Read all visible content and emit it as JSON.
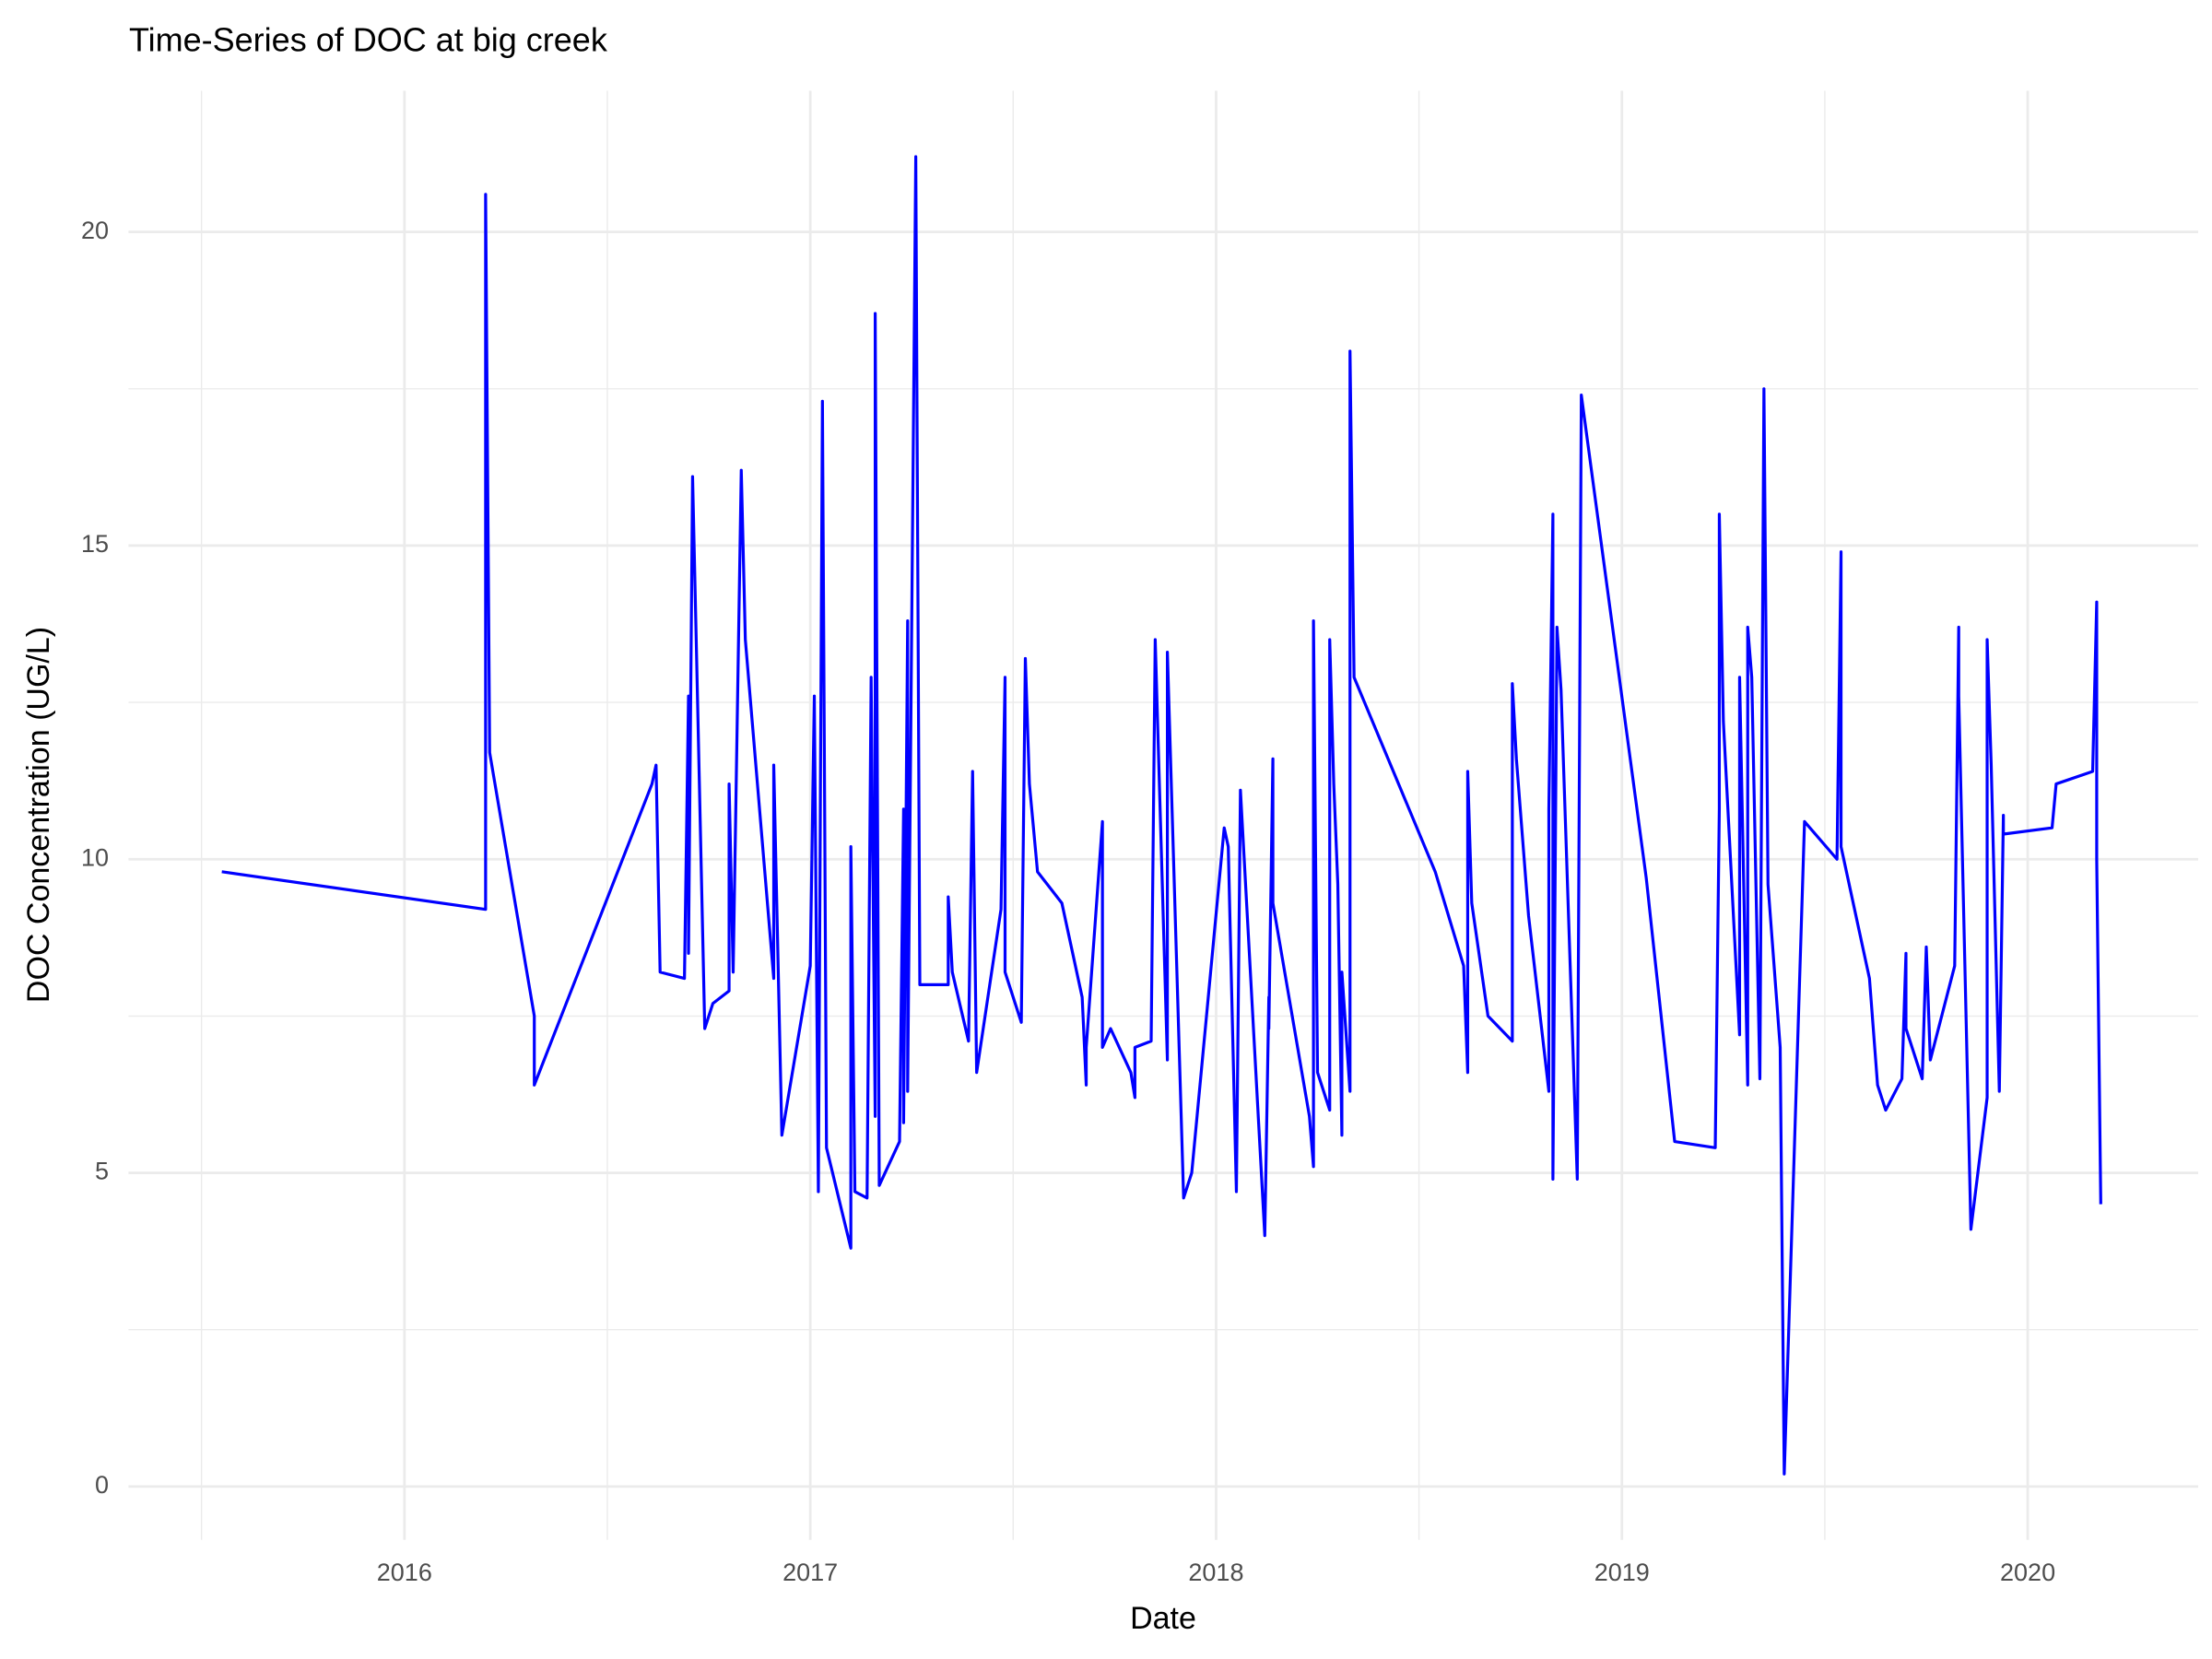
{
  "chart_data": {
    "type": "line",
    "title": "Time-Series of DOC at big creek",
    "x_label": "Date",
    "y_label": "DOC Concentration (UG/L)",
    "color": "#0000ff",
    "grid": true,
    "xlim": [
      2015.32,
      2020.42
    ],
    "xticks": [
      2016,
      2017,
      2018,
      2019,
      2020
    ],
    "ylim": [
      -0.85,
      22.25
    ],
    "yticks": [
      0,
      5,
      10,
      15,
      20
    ],
    "x": [
      2015.55,
      2016.2,
      2016.2,
      2016.21,
      2016.32,
      2016.32,
      2016.61,
      2016.62,
      2016.63,
      2016.69,
      2016.7,
      2016.7,
      2016.71,
      2016.72,
      2016.74,
      2016.76,
      2016.8,
      2016.8,
      2016.81,
      2016.82,
      2016.83,
      2016.84,
      2016.91,
      2016.91,
      2016.93,
      2017.0,
      2017.01,
      2017.02,
      2017.03,
      2017.04,
      2017.1,
      2017.1,
      2017.11,
      2017.14,
      2017.15,
      2017.16,
      2017.16,
      2017.17,
      2017.22,
      2017.23,
      2017.23,
      2017.24,
      2017.24,
      2017.26,
      2017.27,
      2017.34,
      2017.34,
      2017.35,
      2017.39,
      2017.4,
      2017.41,
      2017.47,
      2017.48,
      2017.48,
      2017.52,
      2017.53,
      2017.54,
      2017.56,
      2017.62,
      2017.67,
      2017.68,
      2017.68,
      2017.72,
      2017.72,
      2017.74,
      2017.79,
      2017.8,
      2017.8,
      2017.84,
      2017.85,
      2017.88,
      2017.88,
      2017.92,
      2017.94,
      2018.02,
      2018.03,
      2018.05,
      2018.06,
      2018.12,
      2018.13,
      2018.13,
      2018.14,
      2018.14,
      2018.23,
      2018.24,
      2018.24,
      2018.25,
      2018.28,
      2018.28,
      2018.29,
      2018.3,
      2018.31,
      2018.31,
      2018.33,
      2018.33,
      2018.34,
      2018.54,
      2018.61,
      2018.62,
      2018.62,
      2018.63,
      2018.67,
      2018.73,
      2018.73,
      2018.74,
      2018.77,
      2018.82,
      2018.82,
      2018.83,
      2018.83,
      2018.84,
      2018.85,
      2018.89,
      2018.9,
      2019.06,
      2019.13,
      2019.23,
      2019.24,
      2019.24,
      2019.25,
      2019.29,
      2019.29,
      2019.31,
      2019.31,
      2019.32,
      2019.34,
      2019.35,
      2019.36,
      2019.39,
      2019.4,
      2019.45,
      2019.53,
      2019.54,
      2019.54,
      2019.61,
      2019.63,
      2019.65,
      2019.69,
      2019.7,
      2019.7,
      2019.74,
      2019.75,
      2019.76,
      2019.82,
      2019.83,
      2019.83,
      2019.86,
      2019.9,
      2019.9,
      2019.91,
      2019.93,
      2019.94,
      2019.94,
      2020.06,
      2020.07,
      2020.16,
      2020.17,
      2020.17,
      2020.18
    ],
    "values": [
      9.8,
      9.2,
      20.6,
      11.7,
      7.5,
      6.4,
      11.2,
      11.5,
      8.2,
      8.1,
      12.6,
      8.5,
      16.1,
      13.2,
      7.3,
      7.7,
      7.9,
      11.2,
      8.2,
      12.2,
      16.2,
      13.5,
      8.1,
      11.5,
      5.6,
      8.3,
      12.6,
      4.7,
      17.3,
      5.4,
      3.8,
      10.2,
      4.7,
      4.6,
      12.9,
      5.9,
      18.7,
      4.8,
      5.5,
      10.8,
      5.8,
      13.8,
      6.3,
      21.2,
      8.0,
      8.0,
      9.4,
      8.2,
      7.1,
      11.4,
      6.6,
      9.2,
      12.9,
      8.2,
      7.4,
      13.2,
      11.2,
      9.8,
      9.3,
      7.8,
      6.4,
      7.0,
      10.6,
      7.0,
      7.3,
      6.6,
      6.2,
      7.0,
      7.1,
      13.5,
      6.8,
      13.3,
      4.6,
      5.0,
      10.5,
      10.2,
      4.7,
      11.1,
      4.0,
      7.8,
      7.3,
      11.6,
      9.3,
      5.9,
      5.1,
      13.8,
      6.6,
      6.0,
      13.5,
      11.2,
      9.6,
      5.6,
      8.2,
      6.3,
      18.1,
      12.9,
      9.8,
      8.3,
      6.6,
      11.4,
      9.3,
      7.5,
      7.1,
      12.8,
      11.6,
      9.1,
      6.3,
      10.8,
      15.5,
      4.9,
      13.7,
      12.7,
      4.9,
      17.4,
      9.7,
      5.5,
      5.4,
      10.8,
      15.5,
      12.2,
      7.2,
      12.9,
      6.4,
      13.7,
      12.9,
      6.5,
      17.5,
      9.6,
      7.0,
      0.2,
      10.6,
      10.0,
      14.9,
      10.2,
      8.1,
      6.4,
      6.0,
      6.5,
      8.5,
      7.3,
      6.5,
      8.6,
      6.8,
      8.3,
      13.7,
      12.6,
      4.1,
      6.2,
      13.5,
      11.5,
      6.3,
      10.7,
      10.4,
      10.5,
      11.2,
      11.4,
      14.1,
      10.0,
      4.5
    ]
  }
}
